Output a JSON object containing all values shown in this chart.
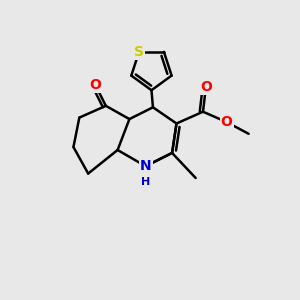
{
  "background_color": "#e8e8e8",
  "bond_color": "#000000",
  "bond_width": 1.8,
  "atom_colors": {
    "S": "#cccc00",
    "O": "#ff0000",
    "N": "#0000cc",
    "C": "#000000"
  },
  "figsize": [
    3.0,
    3.0
  ],
  "dpi": 100
}
